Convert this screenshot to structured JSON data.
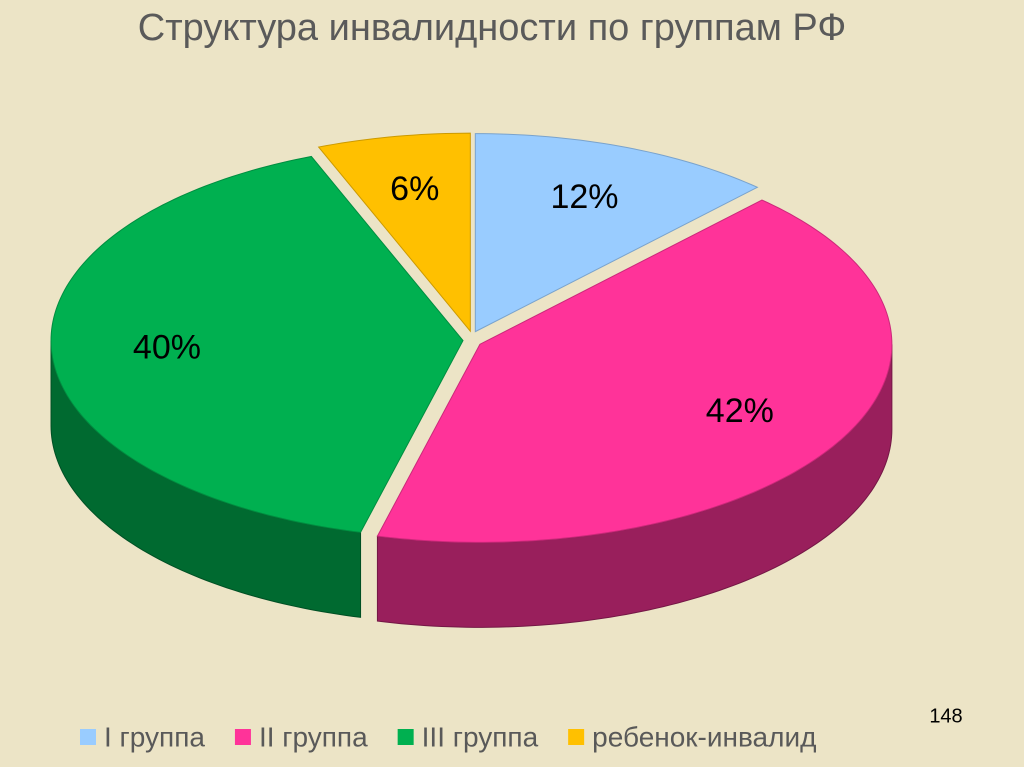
{
  "chart_data": {
    "type": "pie3d",
    "title": "Структура инвалидности по группам РФ",
    "categories": [
      "I группа",
      "II группа",
      "III группа",
      "ребенок-инвалид"
    ],
    "values": [
      12,
      42,
      40,
      6
    ],
    "value_labels": [
      "12%",
      "42%",
      "40%",
      "6%"
    ],
    "colors": [
      "#99ccff",
      "#ff3399",
      "#00b050",
      "#ffc000"
    ],
    "legend": "bottom"
  },
  "slide_number": "148"
}
